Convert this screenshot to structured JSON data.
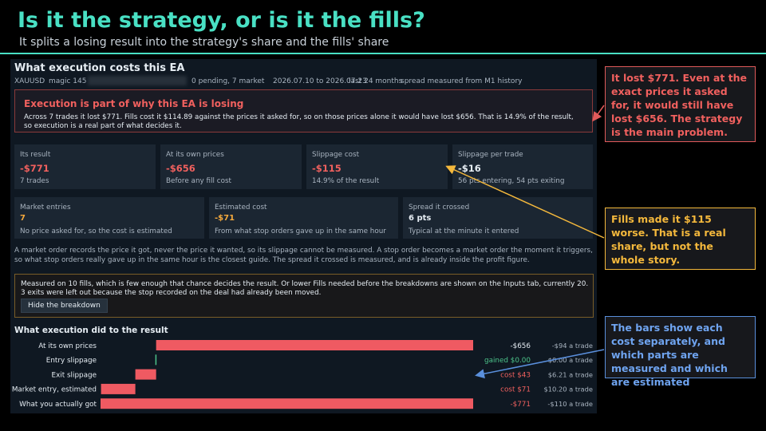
{
  "header": {
    "title": "Is it the strategy, or is it the fills?",
    "subtitle": "It splits a losing result into the strategy's share and the fills' share"
  },
  "panel": {
    "title": "What execution costs this EA",
    "meta": {
      "symbol": "XAUUSD",
      "magic": "magic 145",
      "orders": "0 pending, 7 market",
      "dates": "2026.07.10 to 2026.07.23",
      "window": "last 24 months",
      "spread_source": "spread measured from M1 history"
    },
    "alert": {
      "title": "Execution is part of why this EA is losing",
      "body": "Across 7 trades it lost $771. Fills cost it $114.89 against the prices it asked for, so on those prices alone it would have lost $656. That is 14.9% of the result, so execution is a real part of what decides it."
    },
    "cards_row1": [
      {
        "label": "Its result",
        "value": "-$771",
        "note": "7 trades",
        "tone": "red"
      },
      {
        "label": "At its own prices",
        "value": "-$656",
        "note": "Before any fill cost",
        "tone": "red"
      },
      {
        "label": "Slippage cost",
        "value": "-$115",
        "note": "14.9% of the result",
        "tone": "red"
      },
      {
        "label": "Slippage per trade",
        "value": "-$16",
        "note": "56 pts entering, 54 pts exiting",
        "tone": "white"
      }
    ],
    "cards_row2": [
      {
        "label": "Market entries",
        "value": "7",
        "note": "No price asked for, so the cost is estimated",
        "tone": "orange"
      },
      {
        "label": "Estimated cost",
        "value": "-$71",
        "note": "From what stop orders gave up in the same hour",
        "tone": "orange"
      },
      {
        "label": "Spread it crossed",
        "value": "6 pts",
        "note": "Typical at the minute it entered",
        "tone": "white"
      }
    ],
    "explanation": "A market order records the price it got, never the price it wanted, so its slippage cannot be measured. A stop order becomes a market order the moment it triggers, so what stop orders really gave up in the same hour is the closest guide. The spread it crossed is measured, and is already inside the profit figure.",
    "sample_note": "Measured on 10 fills, which is few enough that chance decides the result. Or lower Fills needed before the breakdowns are shown on the Inputs tab, currently 20. 3 exits were left out because the stop recorded on the deal had already been moved.",
    "hide_button": "Hide the breakdown",
    "bars_title": "What execution did to the result"
  },
  "chart_data": {
    "type": "bar",
    "orientation": "horizontal",
    "categories": [
      "At its own prices",
      "Entry slippage",
      "Exit slippage",
      "Market entry, estimated",
      "What you actually got"
    ],
    "values": [
      -656,
      0,
      -43,
      -71,
      -771
    ],
    "value_labels": [
      "-$656",
      "gained $0.00",
      "cost $43",
      "cost $71",
      "-$771"
    ],
    "per_trade_labels": [
      "-$94 a trade",
      "$0.00 a trade",
      "$6.21 a trade",
      "$10.20 a trade",
      "-$110 a trade"
    ],
    "colors": {
      "bar": "#ef5a62",
      "gain": "#4cc38a",
      "neutral_label": "#e6edf3",
      "cost_label": "#f0605e",
      "per_trade_label": "#a9b4c0"
    },
    "label_tones": [
      "white",
      "green",
      "red",
      "red",
      "red"
    ],
    "bar_modes": [
      "total",
      "step",
      "step",
      "step",
      "total"
    ]
  },
  "callouts": [
    {
      "text": "It lost $771. Even at the exact prices it asked for, it would still have lost $656. The strategy is the main problem."
    },
    {
      "text": "Fills made it $115 worse. That is a real share, but not the whole story."
    },
    {
      "text": "The bars show each cost separately, and which parts are measured and which are estimated"
    }
  ],
  "colors": {
    "accent": "#49e0c4",
    "panel_bg": "#0f1822",
    "card_bg": "#1b2632",
    "negative": "#f0605e",
    "estimate": "#f4a93c",
    "callout_red": "#e05a5a",
    "callout_amber": "#f4b83c",
    "callout_blue": "#5a8fdc"
  }
}
